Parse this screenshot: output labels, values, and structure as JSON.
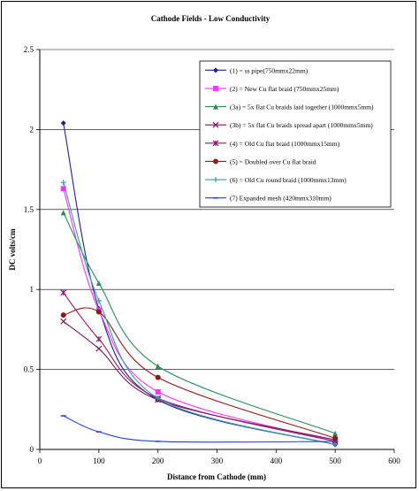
{
  "chart_data": {
    "type": "line",
    "title": "Cathode Fields - Low Conductivity",
    "xlabel": "Distance from Cathode (mm)",
    "ylabel": "DC volts/cm",
    "xlim": [
      0,
      600
    ],
    "ylim": [
      0,
      2.5
    ],
    "xticks": [
      "0",
      "100",
      "200",
      "300",
      "400",
      "500",
      "600"
    ],
    "yticks": [
      "0",
      "0.5",
      "1",
      "1.5",
      "2",
      "2.5"
    ],
    "grid": "horizontal",
    "legend_position": "top-right",
    "series": [
      {
        "name": "(1) = ss pipe(750mmx22mm)",
        "color": "#1f1f8f",
        "marker": "diamond",
        "x": [
          40,
          100,
          200,
          500
        ],
        "y": [
          2.04,
          0.88,
          0.31,
          0.03
        ]
      },
      {
        "name": "(2) =  New Cu flat braid (750mmx25mm)",
        "color": "#ff33ff",
        "marker": "square",
        "x": [
          40,
          100,
          200,
          500
        ],
        "y": [
          1.63,
          0.87,
          0.36,
          0.05
        ]
      },
      {
        "name": "(3a) = 5x flat Cu braids laid together (1000mmx5mm)",
        "color": "#2e8b57",
        "marker": "triangle",
        "x": [
          40,
          100,
          200,
          500
        ],
        "y": [
          1.48,
          1.04,
          0.52,
          0.1
        ]
      },
      {
        "name": "(3b) = 5x flat Cu braids spread apart (1000mmx5mm)",
        "color": "#7b1a5b",
        "marker": "x",
        "x": [
          40,
          100,
          200,
          500
        ],
        "y": [
          0.8,
          0.63,
          0.31,
          0.06
        ]
      },
      {
        "name": "(4) = Old Cu flat braid (1000mmx15mm)",
        "color": "#8b1a6b",
        "marker": "star",
        "x": [
          40,
          100,
          200,
          500
        ],
        "y": [
          0.98,
          0.69,
          0.32,
          0.05
        ]
      },
      {
        "name": "(5) = Doubled over Cu flat braid",
        "color": "#8b1a1a",
        "marker": "circle",
        "x": [
          40,
          100,
          200,
          500
        ],
        "y": [
          0.84,
          0.86,
          0.45,
          0.07
        ]
      },
      {
        "name": "(6) = Old Cu round braid (1000mmx13mm)",
        "color": "#3a9aa8",
        "marker": "plus",
        "x": [
          40,
          100,
          200,
          500
        ],
        "y": [
          1.67,
          0.93,
          0.32,
          0.03
        ]
      },
      {
        "name": "(7) Expanded mesh (420mmx310mm)",
        "color": "#1e3fd6",
        "marker": "bar",
        "x": [
          40,
          100,
          200,
          500
        ],
        "y": [
          0.21,
          0.11,
          0.05,
          0.05
        ]
      }
    ]
  }
}
